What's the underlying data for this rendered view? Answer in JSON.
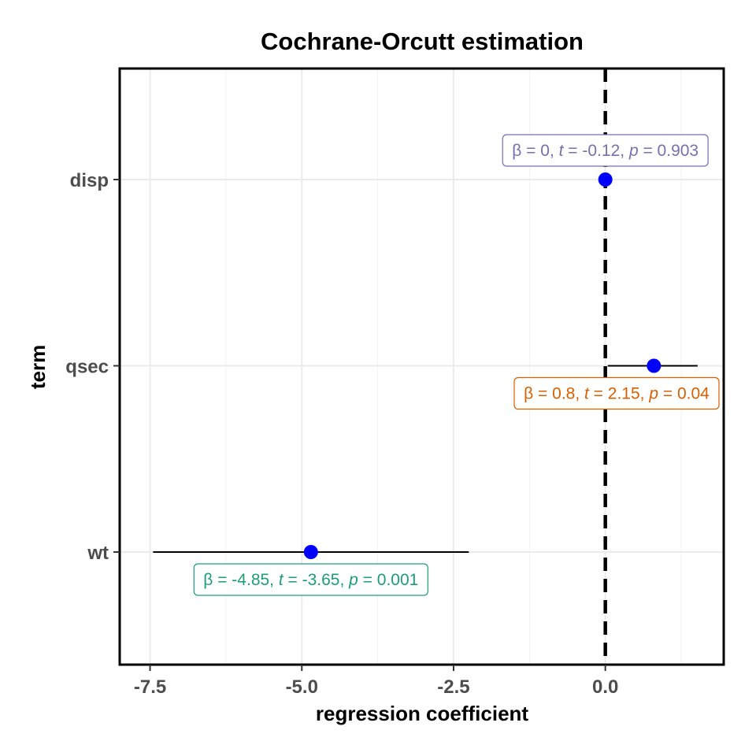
{
  "chart_data": {
    "type": "forest",
    "title": "Cochrane-Orcutt estimation",
    "xlabel": "regression coefficient",
    "ylabel": "term",
    "xlim": [
      -8.0,
      1.95
    ],
    "x_ticks": [
      -7.5,
      -5.0,
      -2.5,
      0.0
    ],
    "x_tick_labels": [
      "-7.5",
      "-5.0",
      "-2.5",
      "0.0"
    ],
    "reference_line": 0,
    "grid": true,
    "point_color": "#0000FF",
    "terms": [
      {
        "term": "disp",
        "estimate": 0.0,
        "conf_low": -0.01,
        "conf_high": 0.01,
        "label_parts": {
          "beta": "0",
          "t": "-0.12",
          "p": "0.903"
        },
        "label_position": "above",
        "label_color": "#7570B3"
      },
      {
        "term": "qsec",
        "estimate": 0.8,
        "conf_low": 0.04,
        "conf_high": 1.52,
        "label_parts": {
          "beta": "0.8",
          "t": "2.15",
          "p": "0.04"
        },
        "label_position": "below",
        "label_color": "#D95F02"
      },
      {
        "term": "wt",
        "estimate": -4.85,
        "conf_low": -7.45,
        "conf_high": -2.25,
        "label_parts": {
          "beta": "-4.85",
          "t": "-3.65",
          "p": "0.001"
        },
        "label_position": "below",
        "label_color": "#1B9E77"
      }
    ]
  }
}
